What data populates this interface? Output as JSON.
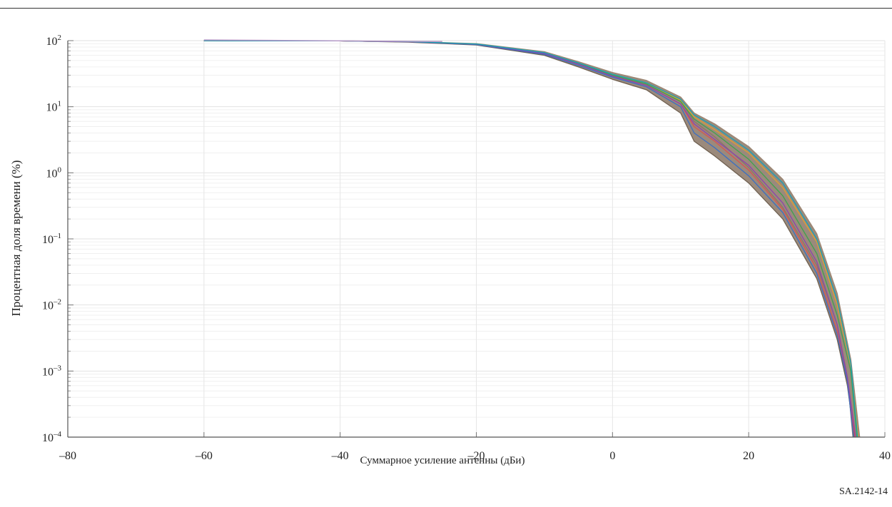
{
  "document_code": "SA.2142-14",
  "chart_data": {
    "type": "line",
    "title": "",
    "xlabel": "Суммарное усиление антенны (дБи)",
    "ylabel": "Процентная доля времени (%)",
    "xlim": [
      -80,
      40
    ],
    "ylim": [
      0.0001,
      100
    ],
    "y_scale": "log",
    "x_ticks": [
      "–80",
      "–60",
      "–40",
      "–20",
      "0",
      "20",
      "40"
    ],
    "x_tick_values": [
      -80,
      -60,
      -40,
      -20,
      0,
      20,
      40
    ],
    "y_ticks": [
      {
        "base": "10",
        "exp": "2",
        "value": 100
      },
      {
        "base": "10",
        "exp": "1",
        "value": 10
      },
      {
        "base": "10",
        "exp": "0",
        "value": 1
      },
      {
        "base": "10",
        "exp": "–1",
        "value": 0.1
      },
      {
        "base": "10",
        "exp": "–2",
        "value": 0.01
      },
      {
        "base": "10",
        "exp": "–3",
        "value": 0.001
      },
      {
        "base": "10",
        "exp": "–4",
        "value": 0.0001
      }
    ],
    "grid": true,
    "legend": "none",
    "series": [
      {
        "color": "#8a7565",
        "x": [
          -60,
          -40,
          -30,
          -20,
          -10,
          -5,
          0,
          5,
          10,
          12,
          15,
          20,
          25,
          30,
          33,
          34.5,
          35.3
        ],
        "y": [
          100,
          99,
          96,
          88,
          65,
          45,
          30,
          22,
          12,
          6,
          3.5,
          1.2,
          0.3,
          0.04,
          0.005,
          0.0008,
          0.0001
        ]
      },
      {
        "color": "#6f6050",
        "x": [
          -60,
          -40,
          -30,
          -20,
          -10,
          -5,
          0,
          5,
          10,
          12,
          15,
          20,
          25,
          30,
          33,
          34.5,
          35.5
        ],
        "y": [
          100,
          99,
          95,
          86,
          60,
          40,
          26,
          18,
          8,
          3,
          1.8,
          0.7,
          0.2,
          0.025,
          0.003,
          0.0006,
          0.0001
        ]
      },
      {
        "color": "#9c8774",
        "x": [
          -60,
          -40,
          -30,
          -20,
          -10,
          -5,
          0,
          5,
          10,
          12,
          15,
          20,
          25,
          30,
          33,
          35,
          36.3
        ],
        "y": [
          100,
          99,
          97,
          90,
          68,
          48,
          33,
          25,
          14,
          8,
          5.5,
          2.5,
          0.8,
          0.12,
          0.015,
          0.0015,
          0.0001
        ]
      },
      {
        "color": "#d9534f",
        "x": [
          -60,
          -40,
          -30,
          -20,
          -10,
          -5,
          0,
          5,
          10,
          12,
          15,
          20,
          25,
          30,
          33,
          34.5,
          35.6
        ],
        "y": [
          100,
          99,
          96,
          88,
          64,
          44,
          29,
          21,
          11,
          5,
          3,
          1.1,
          0.28,
          0.035,
          0.004,
          0.0007,
          0.0001
        ]
      },
      {
        "color": "#3b6fc4",
        "x": [
          -60,
          -40,
          -30,
          -20,
          -10,
          -5,
          0,
          5,
          10,
          12,
          15,
          20,
          25,
          30,
          33,
          34.5,
          35.4
        ],
        "y": [
          100,
          99,
          96,
          87,
          62,
          42,
          28,
          20,
          10,
          4,
          2.4,
          0.9,
          0.25,
          0.03,
          0.0035,
          0.0007,
          0.0001
        ]
      },
      {
        "color": "#e0a030",
        "x": [
          -60,
          -40,
          -30,
          -20,
          -10,
          -5,
          0,
          5,
          10,
          12,
          15,
          20,
          25,
          30,
          33,
          35,
          36.1
        ],
        "y": [
          100,
          99,
          97,
          89,
          66,
          46,
          31,
          23,
          12.5,
          7,
          4.5,
          2,
          0.6,
          0.09,
          0.01,
          0.0012,
          0.0001
        ]
      },
      {
        "color": "#3fa34d",
        "x": [
          -60,
          -40,
          -30,
          -20,
          -10,
          -5,
          0,
          5,
          10,
          12,
          15,
          20,
          25,
          30,
          33,
          35,
          35.9
        ],
        "y": [
          100,
          99,
          96,
          88,
          65,
          45,
          30,
          22,
          12,
          6.5,
          4,
          1.6,
          0.45,
          0.06,
          0.007,
          0.001,
          0.0001
        ]
      },
      {
        "color": "#8e44ad",
        "x": [
          -60,
          -40,
          -30,
          -20,
          -10,
          -5,
          0,
          5,
          10,
          12,
          15,
          20,
          25,
          30,
          33,
          34.5,
          35.7
        ],
        "y": [
          100,
          99,
          96,
          88,
          64,
          44,
          29,
          21,
          11,
          5.5,
          3.2,
          1.3,
          0.35,
          0.045,
          0.005,
          0.0008,
          0.0001
        ]
      },
      {
        "color": "#17a2b8",
        "x": [
          -60,
          -40,
          -30,
          -20,
          -10,
          -5,
          0,
          5,
          10,
          12,
          15,
          20,
          25,
          30,
          33,
          35,
          36.0
        ],
        "y": [
          100,
          99,
          97,
          89,
          66,
          46,
          31,
          23,
          13,
          7.5,
          5,
          2.2,
          0.7,
          0.1,
          0.012,
          0.0013,
          0.0001
        ]
      }
    ]
  }
}
